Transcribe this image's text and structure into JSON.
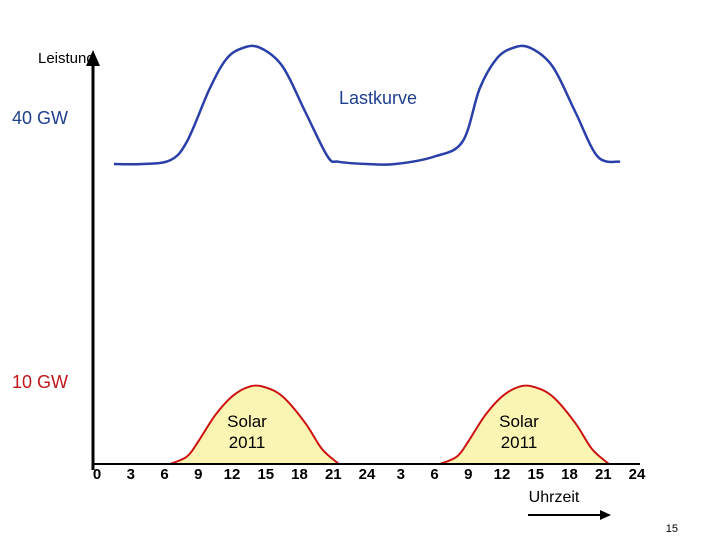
{
  "chart_data": {
    "type": "area",
    "title": "",
    "ylabel": "Leistung",
    "xlabel": "Uhrzeit",
    "x_ticks": [
      "0",
      "3",
      "6",
      "9",
      "12",
      "15",
      "18",
      "21",
      "24",
      "3",
      "6",
      "9",
      "12",
      "15",
      "18",
      "21",
      "24"
    ],
    "x_range_hours": [
      0,
      48
    ],
    "y_reference_labels": [
      {
        "text": "40 GW",
        "value": 40,
        "color": "#1f3f8f"
      },
      {
        "text": "10 GW",
        "value": 10,
        "color": "#c0171c"
      }
    ],
    "series": [
      {
        "name": "Lastkurve",
        "kind": "line",
        "color": "#2a3fa8",
        "x": [
          1.5,
          4,
          6.5,
          8,
          10,
          11.5,
          13,
          14.5,
          16.5,
          18.5,
          20.5,
          21.5,
          24,
          26.5,
          30,
          32.5,
          34,
          35.5,
          37,
          38.5,
          40.5,
          42.5,
          44.5,
          46.5
        ],
        "y": [
          40,
          40,
          40.5,
          43,
          50,
          54,
          55.5,
          55.5,
          53,
          47,
          41,
          40.3,
          40,
          40,
          41,
          43,
          50,
          54,
          55.5,
          55.5,
          53,
          47,
          41,
          40.3
        ]
      },
      {
        "name": "Solar 2011",
        "kind": "area",
        "color": "#cc1010",
        "fill": "#fbf5b4",
        "x": [
          6.5,
          8,
          9,
          10.5,
          12,
          13.5,
          14.8,
          16.5,
          18.5,
          20,
          21.5,
          30.5,
          32,
          33,
          34.5,
          36,
          37.5,
          38.8,
          40.5,
          42.5,
          44,
          45.5
        ],
        "y": [
          0,
          1,
          3,
          6.5,
          9,
          10.3,
          10.3,
          9,
          5.5,
          2,
          0,
          0,
          1,
          3,
          6.5,
          9,
          10.3,
          10.3,
          9,
          5.5,
          2,
          0
        ]
      }
    ],
    "annotations": [
      {
        "text": "Lastkurve"
      },
      {
        "text": "Solar",
        "text2": "2011"
      },
      {
        "text": "Solar",
        "text2": "2011"
      }
    ],
    "page_number": "15"
  }
}
